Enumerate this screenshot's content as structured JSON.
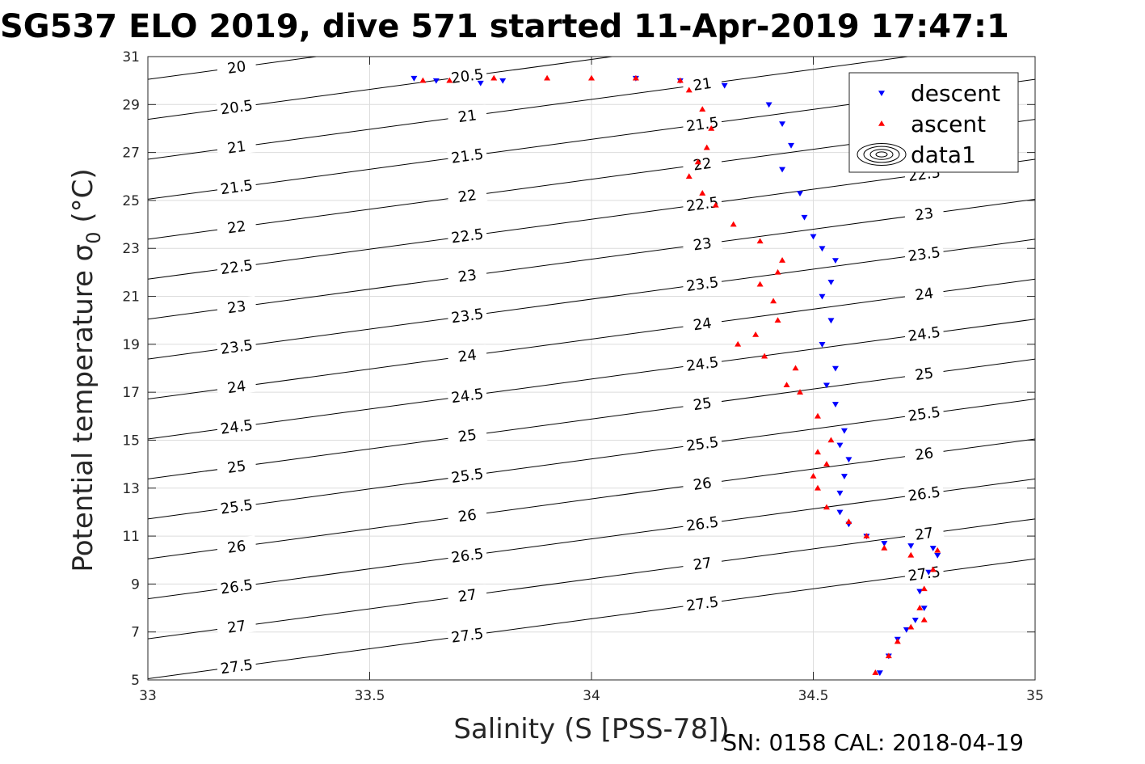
{
  "figure": {
    "title": "SG537 ELO 2019, dive 571 started 11-Apr-2019 17:47:1",
    "footer": "SN: 0158  CAL: 2018-04-19"
  },
  "chart_data": {
    "type": "scatter",
    "title": "SG537 ELO 2019, dive 571 started 11-Apr-2019 17:47:1",
    "xlabel": "Salinity (S [PSS-78])",
    "ylabel": "Potential temperature σ0 (°C)",
    "xlim": [
      33,
      35
    ],
    "ylim": [
      5,
      31
    ],
    "x_ticks": [
      "33",
      "33.5",
      "34",
      "34.5",
      "35"
    ],
    "y_ticks": [
      "5",
      "7",
      "9",
      "11",
      "13",
      "15",
      "17",
      "19",
      "21",
      "23",
      "25",
      "27",
      "29",
      "31"
    ],
    "grid": true,
    "legend": {
      "location": "top-right",
      "entries": [
        "descent",
        "ascent",
        "data1"
      ]
    },
    "colors": {
      "descent": "#0000ff",
      "ascent": "#ff0000",
      "contour": "#000000"
    },
    "contours": {
      "name": "data1",
      "quantity": "sigma0",
      "levels": [
        "20",
        "20.5",
        "21",
        "21.5",
        "22",
        "22.5",
        "23",
        "23.5",
        "24",
        "24.5",
        "25",
        "25.5",
        "26",
        "26.5",
        "27",
        "27.5"
      ]
    },
    "series": [
      {
        "name": "descent",
        "marker": "triangle-down",
        "x": [
          33.6,
          33.65,
          33.75,
          33.8,
          34.1,
          34.2,
          34.3,
          34.4,
          34.43,
          34.45,
          34.43,
          34.47,
          34.48,
          34.5,
          34.52,
          34.55,
          34.54,
          34.52,
          34.54,
          34.52,
          34.55,
          34.53,
          34.55,
          34.57,
          34.56,
          34.58,
          34.57,
          34.56,
          34.56,
          34.58,
          34.62,
          34.66,
          34.72,
          34.77,
          34.78,
          34.76,
          34.74,
          34.75,
          34.73,
          34.71,
          34.69,
          34.67,
          34.65
        ],
        "y": [
          30.1,
          30.0,
          29.9,
          30.0,
          30.1,
          30.0,
          29.8,
          29.0,
          28.2,
          27.3,
          26.3,
          25.3,
          24.3,
          23.5,
          23.0,
          22.5,
          21.6,
          21.0,
          20.0,
          19.0,
          18.0,
          17.3,
          16.5,
          15.4,
          14.8,
          14.2,
          13.5,
          12.8,
          12.0,
          11.5,
          11.0,
          10.7,
          10.6,
          10.5,
          10.2,
          9.5,
          8.7,
          8.0,
          7.5,
          7.1,
          6.7,
          6.0,
          5.3
        ]
      },
      {
        "name": "ascent",
        "marker": "triangle-up",
        "x": [
          33.62,
          33.68,
          33.78,
          33.9,
          34.0,
          34.1,
          34.2,
          34.22,
          34.25,
          34.27,
          34.26,
          34.24,
          34.22,
          34.25,
          34.28,
          34.32,
          34.38,
          34.43,
          34.42,
          34.38,
          34.41,
          34.42,
          34.37,
          34.33,
          34.39,
          34.46,
          34.44,
          34.47,
          34.51,
          34.54,
          34.51,
          34.53,
          34.5,
          34.51,
          34.53,
          34.58,
          34.62,
          34.66,
          34.72,
          34.78,
          34.77,
          34.75,
          34.74,
          34.75,
          34.72,
          34.69,
          34.67,
          34.64
        ],
        "y": [
          30.0,
          30.0,
          30.1,
          30.1,
          30.1,
          30.1,
          30.0,
          29.6,
          28.8,
          28.0,
          27.2,
          26.6,
          26.0,
          25.3,
          24.8,
          24.0,
          23.3,
          22.5,
          22.0,
          21.5,
          20.8,
          20.0,
          19.4,
          19.0,
          18.5,
          18.0,
          17.3,
          17.0,
          16.0,
          15.0,
          14.5,
          14.0,
          13.5,
          13.0,
          12.2,
          11.6,
          11.0,
          10.5,
          10.2,
          10.4,
          9.6,
          8.8,
          8.0,
          7.5,
          7.2,
          6.6,
          6.0,
          5.3
        ]
      }
    ]
  }
}
